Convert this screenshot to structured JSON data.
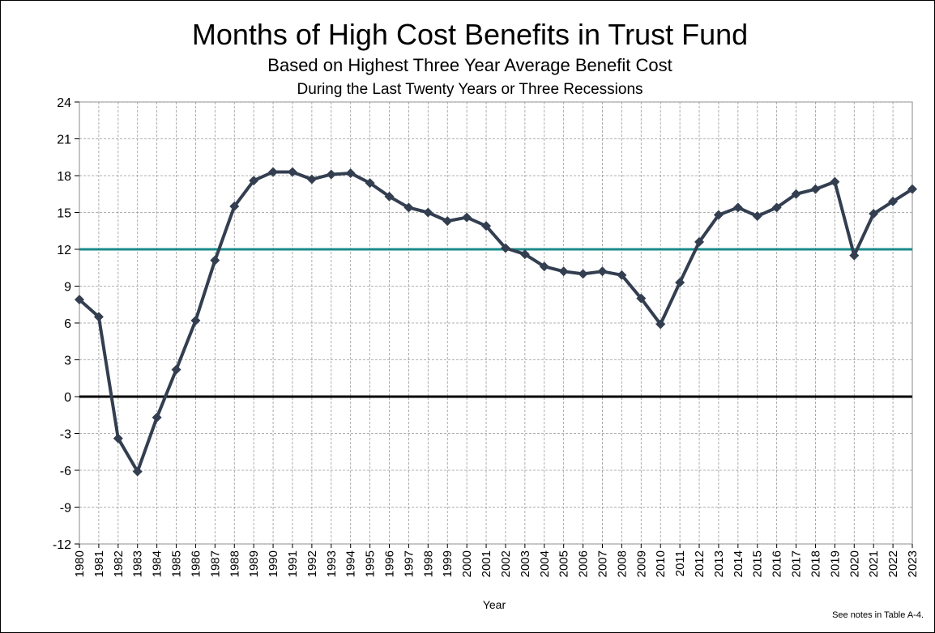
{
  "chart_data": {
    "type": "line",
    "title": "Months of High Cost Benefits in Trust Fund",
    "subtitle": "Based on Highest Three Year Average Benefit Cost",
    "subtitle2": "During the Last Twenty Years or Three Recessions",
    "x_label": "Year",
    "note": "See notes  in Table A-4.",
    "categories": [
      "1980",
      "1981",
      "1982",
      "1983",
      "1984",
      "1985",
      "1986",
      "1987",
      "1988",
      "1989",
      "1990",
      "1991",
      "1992",
      "1993",
      "1994",
      "1995",
      "1996",
      "1997",
      "1998",
      "1999",
      "2000",
      "2001",
      "2002",
      "2003",
      "2004",
      "2005",
      "2006",
      "2007",
      "2008",
      "2009",
      "2010",
      "2011",
      "2012",
      "2013",
      "2014",
      "2015",
      "2016",
      "2017",
      "2018",
      "2019",
      "2020",
      "2021",
      "2022",
      "2023"
    ],
    "series": [
      {
        "color": "#333f50",
        "values": [
          7.9,
          6.5,
          -3.4,
          -6.1,
          -1.7,
          2.2,
          6.2,
          11.1,
          15.5,
          17.6,
          18.3,
          18.3,
          17.7,
          18.1,
          18.2,
          17.4,
          16.3,
          15.4,
          15.0,
          14.3,
          14.6,
          13.9,
          12.1,
          11.6,
          10.6,
          10.2,
          10.0,
          10.2,
          9.9,
          8.0,
          5.9,
          9.3,
          12.6,
          14.8,
          15.4,
          14.7,
          15.4,
          16.5,
          16.9,
          17.5,
          11.5,
          14.9,
          15.9,
          16.9
        ]
      }
    ],
    "reference_line": {
      "value": 12,
      "color": "#1a8a8a"
    },
    "zero_line_color": "#000000",
    "ylim": [
      -12,
      24
    ],
    "yticks": [
      -12,
      -9,
      -6,
      -3,
      0,
      3,
      6,
      9,
      12,
      15,
      18,
      21,
      24
    ],
    "grid": true
  }
}
